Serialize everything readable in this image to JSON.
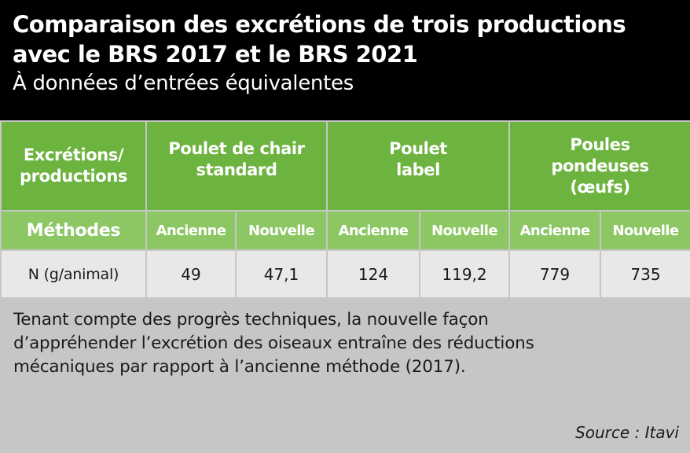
{
  "header": {
    "title_line1": "Comparaison des excrétions de trois productions",
    "title_line2": "avec le BRS 2017 et le BRS 2021",
    "subtitle": "À données d’entrées équivalentes"
  },
  "chart_data": {
    "type": "table",
    "corner_label_line1": "Excrétions/",
    "corner_label_line2": "productions",
    "methods_label": "Méthodes",
    "productions": [
      {
        "name_lines": [
          "Poulet de chair",
          "standard"
        ]
      },
      {
        "name_lines": [
          "Poulet",
          "label"
        ]
      },
      {
        "name_lines": [
          "Poules",
          "pondeuses",
          "(œufs)"
        ]
      }
    ],
    "methods": [
      "Ancienne",
      "Nouvelle",
      "Ancienne",
      "Nouvelle",
      "Ancienne",
      "Nouvelle"
    ],
    "rows": [
      {
        "label": "N (g/animal)",
        "values": [
          "49",
          "47,1",
          "124",
          "119,2",
          "779",
          "735"
        ]
      }
    ]
  },
  "footer": {
    "note": "Tenant compte des progrès techniques, la nouvelle façon d’appréhender l’excrétion des oiseaux entraîne des réductions mécaniques par rapport à l’ancienne méthode (2017).",
    "source": "Source : Itavi"
  }
}
